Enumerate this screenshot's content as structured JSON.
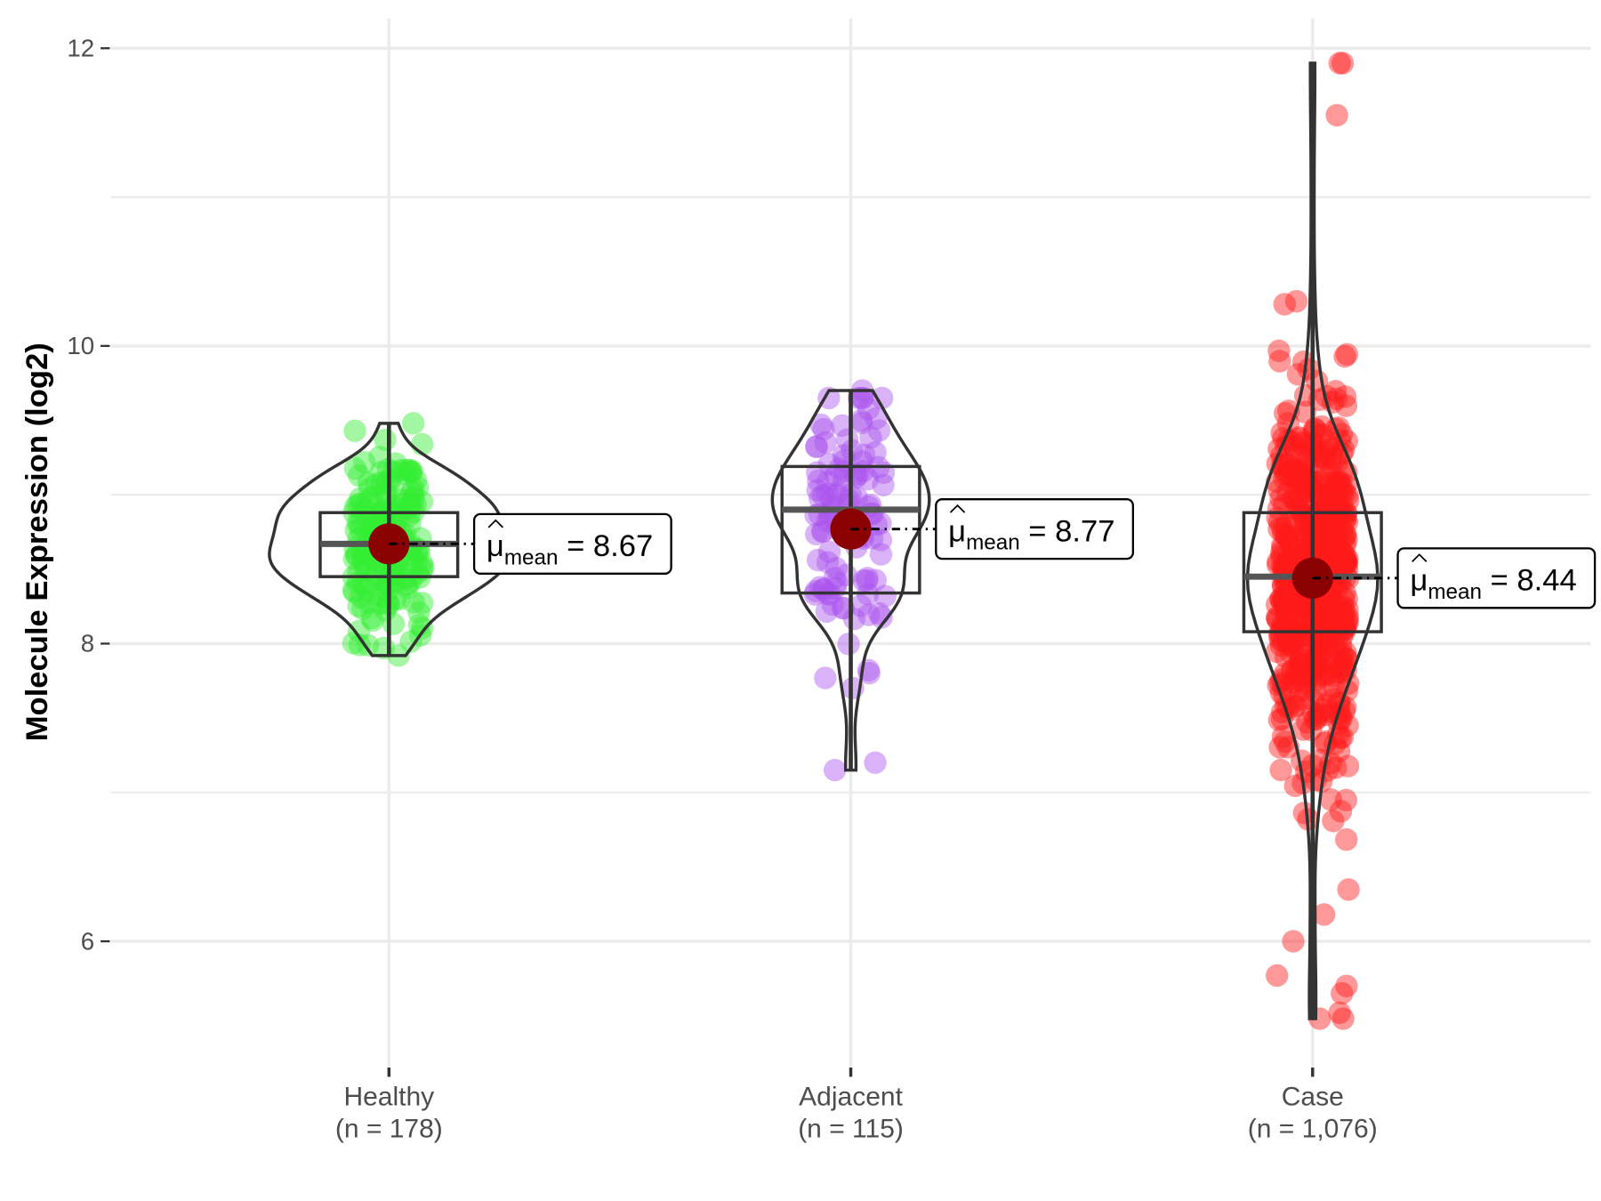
{
  "chart_data": {
    "type": "violin",
    "title": "",
    "xlabel": "",
    "ylabel": "Molecule Expression (log2)",
    "ylim": [
      4.9,
      12.2
    ],
    "yticks": [
      6,
      8,
      10,
      12
    ],
    "grid": true,
    "mean_label_prefix": "μ",
    "mean_label_sub": "mean",
    "groups": [
      {
        "name": "Healthy",
        "n_label": "(n = 178)",
        "n": 178,
        "color": "#33ee33",
        "mean": 8.67,
        "mean_text": "8.67",
        "q1": 8.45,
        "median": 8.67,
        "q3": 8.88,
        "min": 7.92,
        "max": 9.48,
        "sd": 0.33
      },
      {
        "name": "Adjacent",
        "n_label": "(n = 115)",
        "n": 115,
        "color": "#aa55ee",
        "mean": 8.77,
        "mean_text": "8.77",
        "q1": 8.34,
        "median": 8.9,
        "q3": 9.19,
        "min": 7.15,
        "max": 9.7,
        "sd": 0.52
      },
      {
        "name": "Case",
        "n_label": "(n = 1,076)",
        "n": 1076,
        "color": "#ff1a1a",
        "mean": 8.44,
        "mean_text": "8.44",
        "q1": 8.08,
        "median": 8.45,
        "q3": 8.88,
        "min": 5.48,
        "max": 11.9,
        "sd": 0.62,
        "outliers": [
          11.9,
          11.55,
          10.3,
          10.28,
          5.48,
          5.52,
          5.65,
          5.7,
          5.77,
          6.0,
          6.18
        ]
      }
    ]
  }
}
